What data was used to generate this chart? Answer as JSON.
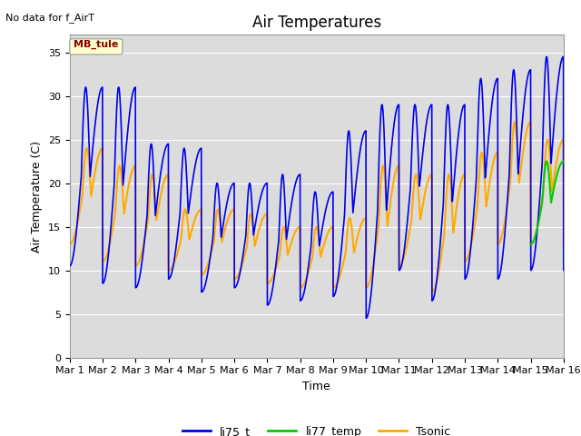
{
  "title": "Air Temperatures",
  "no_data_text": "No data for f_AirT",
  "mb_tule_label": "MB_tule",
  "xlabel": "Time",
  "ylabel": "Air Temperature (C)",
  "ylim": [
    0,
    37
  ],
  "yticks": [
    0,
    5,
    10,
    15,
    20,
    25,
    30,
    35
  ],
  "xlim_days": [
    0,
    15
  ],
  "xtick_days": [
    0,
    1,
    2,
    3,
    4,
    5,
    6,
    7,
    8,
    9,
    10,
    11,
    12,
    13,
    14,
    15
  ],
  "xtick_labels": [
    "Mar 1",
    "Mar 2",
    "Mar 3",
    "Mar 4",
    "Mar 5",
    "Mar 6",
    "Mar 7",
    "Mar 8",
    "Mar 9",
    "Mar 10",
    "Mar 11",
    "Mar 12",
    "Mar 13",
    "Mar 14",
    "Mar 15",
    "Mar 16"
  ],
  "line_colors": {
    "li75_t": "#0000ee",
    "li77_temp": "#00cc00",
    "Tsonic": "#ffaa00"
  },
  "line_widths": {
    "li75_t": 1.2,
    "li77_temp": 1.5,
    "Tsonic": 1.5
  },
  "plot_bg_color": "#dcdcdc",
  "fig_bg_color": "#ffffff",
  "grid_color": "#ffffff",
  "title_fontsize": 12,
  "axis_label_fontsize": 9,
  "tick_fontsize": 8,
  "legend_fontsize": 9,
  "no_data_fontsize": 8,
  "mb_tule_fontsize": 8
}
